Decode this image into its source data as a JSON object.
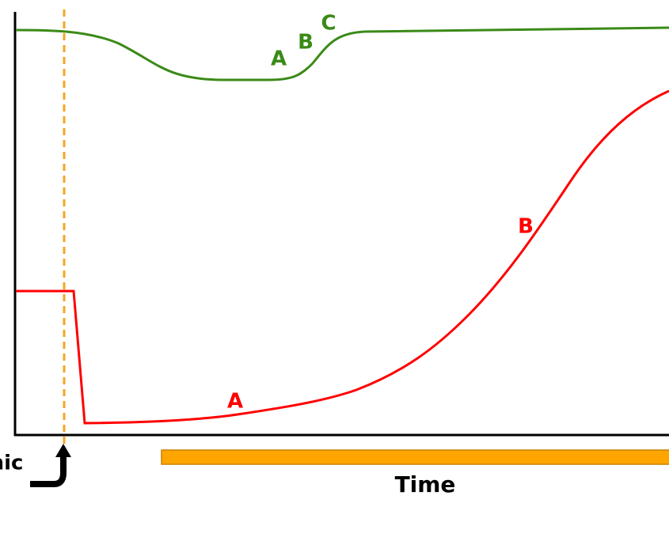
{
  "curve_labels": {
    "green": [
      "A",
      "B",
      "C"
    ],
    "red": [
      "A",
      "B"
    ]
  },
  "axis_label": "Time",
  "marker_label": "nic"
}
